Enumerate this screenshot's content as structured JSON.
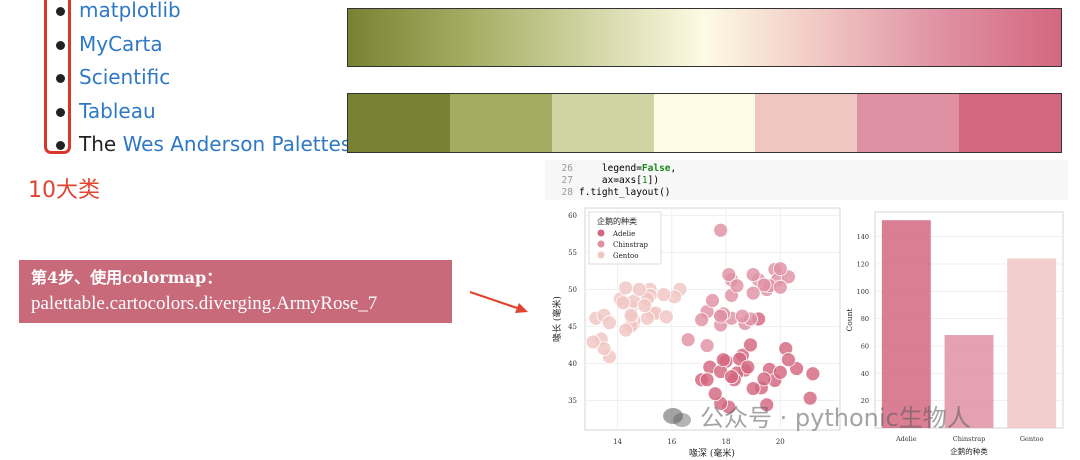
{
  "top_list": {
    "items": [
      {
        "prefix": "",
        "link": "matplotlib"
      },
      {
        "prefix": "",
        "link": "MyCarta"
      },
      {
        "prefix": "",
        "link": "Scientific"
      },
      {
        "prefix": "",
        "link": "Tableau"
      },
      {
        "prefix": "The ",
        "link": "Wes Anderson Palettes"
      }
    ],
    "bracket_note": "10大类"
  },
  "colormap": {
    "colors": [
      "#798234",
      "#a3ad62",
      "#d0d3a2",
      "#fdfbe4",
      "#f0c6c3",
      "#df91a3",
      "#d46780"
    ],
    "border_color": "#333333"
  },
  "step": {
    "title": "第4步、使用colormap：",
    "body": "palettable.cartocolors.diverging.ArmyRose_7",
    "bg_color": "#c86a7a",
    "arrow_color": "#e2432f"
  },
  "code": {
    "lines": [
      {
        "num": "26",
        "pre": "    legend=",
        "kw": "False",
        "post": ","
      },
      {
        "num": "27",
        "pre": "    ax=axs[",
        "kw": "1",
        "post": "])"
      },
      {
        "num": "28",
        "pre": "f.tight_layout()",
        "kw": "",
        "post": ""
      }
    ]
  },
  "watermark": "公众号 · pythonic生物人",
  "chart_data": [
    {
      "type": "scatter",
      "title": "",
      "xlabel": "喙深 (毫米)",
      "ylabel": "喙长 (毫米)",
      "xlim": [
        12.8,
        22.2
      ],
      "ylim": [
        31,
        61
      ],
      "xticks": [
        14,
        16,
        18,
        20
      ],
      "yticks": [
        35,
        40,
        45,
        50,
        55,
        60
      ],
      "grid": true,
      "legend": {
        "title": "企鹅的种类",
        "placement": "top-left"
      },
      "series": [
        {
          "name": "Adelie",
          "color": "#d46780",
          "x": [
            18.7,
            17.4,
            18.0,
            19.3,
            20.6,
            17.8,
            19.6,
            18.1,
            20.2,
            17.1,
            17.3,
            18.6,
            21.2,
            17.8,
            19.0,
            18.4,
            18.9,
            19.5,
            19.2,
            18.3,
            19.8,
            17.6,
            18.2,
            20.0,
            21.1,
            18.5,
            17.9,
            19.4,
            20.3,
            18.8
          ],
          "y": [
            39.1,
            39.5,
            40.3,
            36.7,
            39.3,
            38.9,
            39.2,
            34.1,
            42.0,
            37.8,
            37.8,
            41.1,
            38.6,
            34.6,
            36.6,
            38.7,
            42.5,
            34.4,
            46.0,
            37.8,
            37.7,
            35.9,
            38.2,
            38.8,
            35.3,
            40.6,
            40.5,
            37.9,
            40.5,
            39.5
          ]
        },
        {
          "name": "Chinstrap",
          "color": "#df91a3",
          "x": [
            17.9,
            19.5,
            19.2,
            18.7,
            19.8,
            17.8,
            18.2,
            18.2,
            18.9,
            19.9,
            17.8,
            20.3,
            17.3,
            18.1,
            17.1,
            19.6,
            20.0,
            17.8,
            18.6,
            18.2,
            17.3,
            17.5,
            16.6,
            19.4,
            17.9,
            19.0,
            18.4,
            19.0,
            17.8,
            20.0
          ],
          "y": [
            46.5,
            50.0,
            51.3,
            45.4,
            52.7,
            45.2,
            46.1,
            51.3,
            46.0,
            51.3,
            46.6,
            51.7,
            47.0,
            52.0,
            45.9,
            50.5,
            50.3,
            58.0,
            46.4,
            49.2,
            42.4,
            48.5,
            43.2,
            50.6,
            46.7,
            52.0,
            50.5,
            49.5,
            46.4,
            52.8
          ]
        },
        {
          "name": "Gentoo",
          "color": "#f0c6c3",
          "x": [
            13.2,
            16.3,
            14.1,
            15.2,
            14.5,
            13.5,
            14.6,
            15.3,
            13.4,
            15.4,
            13.7,
            16.1,
            13.7,
            14.6,
            14.6,
            15.7,
            13.5,
            15.2,
            14.5,
            15.1,
            14.3,
            14.5,
            14.5,
            15.8,
            13.1,
            15.1,
            14.3,
            15.0,
            14.2,
            14.8
          ],
          "y": [
            46.1,
            50.0,
            48.7,
            50.0,
            47.6,
            46.5,
            45.4,
            46.7,
            43.3,
            46.8,
            40.9,
            49.0,
            45.5,
            48.4,
            45.8,
            49.3,
            42.0,
            49.2,
            46.2,
            48.7,
            50.2,
            45.1,
            46.5,
            46.3,
            42.9,
            46.1,
            44.5,
            47.8,
            48.2,
            50.0
          ]
        }
      ]
    },
    {
      "type": "bar",
      "title": "",
      "categories": [
        "Adelie",
        "Chinstrap",
        "Gentoo"
      ],
      "values": [
        152,
        68,
        124
      ],
      "colors": [
        "#d46780",
        "#df91a3",
        "#f0c6c3"
      ],
      "xlabel": "企鹅的种类",
      "ylabel": "Count",
      "ylim": [
        0,
        158
      ],
      "yticks": [
        20,
        40,
        60,
        80,
        100,
        120,
        140
      ]
    }
  ]
}
